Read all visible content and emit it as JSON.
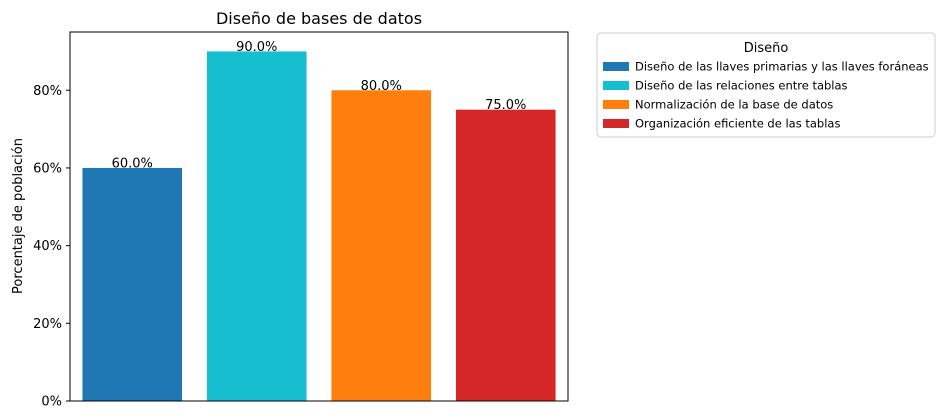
{
  "chart_data": {
    "type": "bar",
    "title": "Diseño de bases de datos",
    "xlabel": "",
    "ylabel": "Porcentaje de población",
    "ylim": [
      0,
      95
    ],
    "yticks": [
      0,
      20,
      40,
      60,
      80
    ],
    "ytick_labels": [
      "0%",
      "20%",
      "40%",
      "60%",
      "80%"
    ],
    "categories": [
      "Diseño de las llaves primarias y las llaves foráneas",
      "Diseño de las relaciones entre tablas",
      "Normalización de la base de datos",
      "Organización eficiente de las tablas"
    ],
    "values": [
      60,
      90,
      80,
      75
    ],
    "value_labels": [
      "60.0%",
      "90.0%",
      "80.0%",
      "75.0%"
    ],
    "colors": [
      "#1f77b4",
      "#17becf",
      "#ff7f0e",
      "#d62728"
    ],
    "grid": false,
    "legend": {
      "title": "Diseño",
      "placement": "outside-right-top"
    }
  }
}
